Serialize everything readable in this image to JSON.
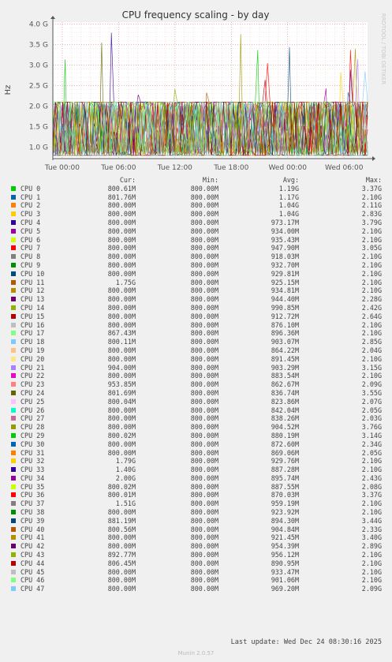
{
  "chart_data": {
    "type": "line",
    "title": "CPU frequency scaling - by day",
    "ylabel": "Hz",
    "side_label": "RRDTOOL / TOBI OETIKER",
    "ylim": [
      0.72,
      4.05
    ],
    "y_unit": "GHz",
    "y_ticks": [
      {
        "value": 1.0,
        "label": "1.0 G"
      },
      {
        "value": 1.5,
        "label": "1.5 G"
      },
      {
        "value": 2.0,
        "label": "2.0 G"
      },
      {
        "value": 2.5,
        "label": "2.5 G"
      },
      {
        "value": 3.0,
        "label": "3.0 G"
      },
      {
        "value": 3.5,
        "label": "3.5 G"
      },
      {
        "value": 4.0,
        "label": "4.0 G"
      }
    ],
    "x_unit": "hours since Tue 00:00",
    "xlim": [
      -1.0,
      32.5
    ],
    "x_ticks": [
      {
        "value": 0,
        "label": "Tue 00:00"
      },
      {
        "value": 6,
        "label": "Tue 06:00"
      },
      {
        "value": 12,
        "label": "Tue 12:00"
      },
      {
        "value": 18,
        "label": "Tue 18:00"
      },
      {
        "value": 24,
        "label": "Wed 00:00"
      },
      {
        "value": 30,
        "label": "Wed 06:00"
      }
    ],
    "grid": true,
    "legend_placement": "bottom",
    "columns": {
      "cur": "Cur:",
      "min": "Min:",
      "avg": "Avg:",
      "max": "Max:"
    },
    "series": [
      {
        "name": "CPU 0",
        "color": "#00cc00",
        "cur": "800.61M",
        "min": "800.00M",
        "avg": "1.19G",
        "max": "3.37G"
      },
      {
        "name": "CPU 1",
        "color": "#0066b3",
        "cur": "801.76M",
        "min": "800.00M",
        "avg": "1.17G",
        "max": "2.10G"
      },
      {
        "name": "CPU 2",
        "color": "#ff8000",
        "cur": "800.00M",
        "min": "800.00M",
        "avg": "1.04G",
        "max": "2.11G"
      },
      {
        "name": "CPU 3",
        "color": "#ffcc00",
        "cur": "800.00M",
        "min": "800.00M",
        "avg": "1.04G",
        "max": "2.83G"
      },
      {
        "name": "CPU 4",
        "color": "#330099",
        "cur": "800.00M",
        "min": "800.00M",
        "avg": "973.17M",
        "max": "3.79G"
      },
      {
        "name": "CPU 5",
        "color": "#990099",
        "cur": "800.00M",
        "min": "800.00M",
        "avg": "934.00M",
        "max": "2.10G"
      },
      {
        "name": "CPU 6",
        "color": "#ccff00",
        "cur": "800.00M",
        "min": "800.00M",
        "avg": "935.43M",
        "max": "2.10G"
      },
      {
        "name": "CPU 7",
        "color": "#ff0000",
        "cur": "800.00M",
        "min": "800.00M",
        "avg": "947.90M",
        "max": "3.05G"
      },
      {
        "name": "CPU 8",
        "color": "#808080",
        "cur": "800.00M",
        "min": "800.00M",
        "avg": "918.03M",
        "max": "2.10G"
      },
      {
        "name": "CPU 9",
        "color": "#008f00",
        "cur": "800.00M",
        "min": "800.00M",
        "avg": "932.70M",
        "max": "2.10G"
      },
      {
        "name": "CPU 10",
        "color": "#00487d",
        "cur": "800.00M",
        "min": "800.00M",
        "avg": "929.81M",
        "max": "2.10G"
      },
      {
        "name": "CPU 11",
        "color": "#b35a00",
        "cur": "1.75G",
        "min": "800.00M",
        "avg": "925.15M",
        "max": "2.10G"
      },
      {
        "name": "CPU 12",
        "color": "#b38f00",
        "cur": "800.00M",
        "min": "800.00M",
        "avg": "934.81M",
        "max": "2.10G"
      },
      {
        "name": "CPU 13",
        "color": "#6b006b",
        "cur": "800.00M",
        "min": "800.00M",
        "avg": "944.40M",
        "max": "2.28G"
      },
      {
        "name": "CPU 14",
        "color": "#8fb300",
        "cur": "800.00M",
        "min": "800.00M",
        "avg": "990.85M",
        "max": "2.42G"
      },
      {
        "name": "CPU 15",
        "color": "#b30000",
        "cur": "800.00M",
        "min": "800.00M",
        "avg": "912.72M",
        "max": "2.64G"
      },
      {
        "name": "CPU 16",
        "color": "#bebebe",
        "cur": "800.00M",
        "min": "800.00M",
        "avg": "876.10M",
        "max": "2.10G"
      },
      {
        "name": "CPU 17",
        "color": "#80ff80",
        "cur": "867.43M",
        "min": "800.00M",
        "avg": "896.36M",
        "max": "2.10G"
      },
      {
        "name": "CPU 18",
        "color": "#80c9ff",
        "cur": "800.11M",
        "min": "800.00M",
        "avg": "903.07M",
        "max": "2.85G"
      },
      {
        "name": "CPU 19",
        "color": "#ffc080",
        "cur": "800.00M",
        "min": "800.00M",
        "avg": "864.22M",
        "max": "2.04G"
      },
      {
        "name": "CPU 20",
        "color": "#ffe680",
        "cur": "800.00M",
        "min": "800.00M",
        "avg": "891.45M",
        "max": "2.10G"
      },
      {
        "name": "CPU 21",
        "color": "#aa80ff",
        "cur": "904.00M",
        "min": "800.00M",
        "avg": "903.29M",
        "max": "3.15G"
      },
      {
        "name": "CPU 22",
        "color": "#ee00cc",
        "cur": "800.00M",
        "min": "800.00M",
        "avg": "883.54M",
        "max": "2.10G"
      },
      {
        "name": "CPU 23",
        "color": "#ff8080",
        "cur": "953.85M",
        "min": "800.00M",
        "avg": "862.67M",
        "max": "2.09G"
      },
      {
        "name": "CPU 24",
        "color": "#666600",
        "cur": "801.69M",
        "min": "800.00M",
        "avg": "836.74M",
        "max": "3.55G"
      },
      {
        "name": "CPU 25",
        "color": "#ffbfff",
        "cur": "800.04M",
        "min": "800.00M",
        "avg": "823.86M",
        "max": "2.07G"
      },
      {
        "name": "CPU 26",
        "color": "#00ffcc",
        "cur": "800.00M",
        "min": "800.00M",
        "avg": "842.04M",
        "max": "2.05G"
      },
      {
        "name": "CPU 27",
        "color": "#cc6699",
        "cur": "800.00M",
        "min": "800.00M",
        "avg": "838.26M",
        "max": "2.03G"
      },
      {
        "name": "CPU 28",
        "color": "#999900",
        "cur": "800.00M",
        "min": "800.00M",
        "avg": "904.52M",
        "max": "3.76G"
      },
      {
        "name": "CPU 29",
        "color": "#00cc00",
        "cur": "800.02M",
        "min": "800.00M",
        "avg": "880.19M",
        "max": "3.14G"
      },
      {
        "name": "CPU 30",
        "color": "#0066b3",
        "cur": "800.00M",
        "min": "800.00M",
        "avg": "872.60M",
        "max": "2.34G"
      },
      {
        "name": "CPU 31",
        "color": "#ff8000",
        "cur": "800.00M",
        "min": "800.00M",
        "avg": "869.06M",
        "max": "2.05G"
      },
      {
        "name": "CPU 32",
        "color": "#ffcc00",
        "cur": "1.79G",
        "min": "800.00M",
        "avg": "929.76M",
        "max": "2.10G"
      },
      {
        "name": "CPU 33",
        "color": "#330099",
        "cur": "1.40G",
        "min": "800.00M",
        "avg": "887.28M",
        "max": "2.10G"
      },
      {
        "name": "CPU 34",
        "color": "#990099",
        "cur": "2.00G",
        "min": "800.00M",
        "avg": "895.74M",
        "max": "2.43G"
      },
      {
        "name": "CPU 35",
        "color": "#ccff00",
        "cur": "800.02M",
        "min": "800.00M",
        "avg": "887.55M",
        "max": "2.08G"
      },
      {
        "name": "CPU 36",
        "color": "#ff0000",
        "cur": "800.01M",
        "min": "800.00M",
        "avg": "870.03M",
        "max": "3.37G"
      },
      {
        "name": "CPU 37",
        "color": "#808080",
        "cur": "1.51G",
        "min": "800.00M",
        "avg": "959.19M",
        "max": "2.10G"
      },
      {
        "name": "CPU 38",
        "color": "#008f00",
        "cur": "800.00M",
        "min": "800.00M",
        "avg": "923.92M",
        "max": "2.10G"
      },
      {
        "name": "CPU 39",
        "color": "#00487d",
        "cur": "881.19M",
        "min": "800.00M",
        "avg": "894.30M",
        "max": "3.44G"
      },
      {
        "name": "CPU 40",
        "color": "#b35a00",
        "cur": "800.56M",
        "min": "800.00M",
        "avg": "904.84M",
        "max": "2.33G"
      },
      {
        "name": "CPU 41",
        "color": "#b38f00",
        "cur": "800.00M",
        "min": "800.00M",
        "avg": "921.45M",
        "max": "3.40G"
      },
      {
        "name": "CPU 42",
        "color": "#6b006b",
        "cur": "800.00M",
        "min": "800.00M",
        "avg": "954.39M",
        "max": "2.89G"
      },
      {
        "name": "CPU 43",
        "color": "#8fb300",
        "cur": "892.77M",
        "min": "800.00M",
        "avg": "956.12M",
        "max": "2.10G"
      },
      {
        "name": "CPU 44",
        "color": "#b30000",
        "cur": "806.45M",
        "min": "800.00M",
        "avg": "890.95M",
        "max": "2.10G"
      },
      {
        "name": "CPU 45",
        "color": "#bebebe",
        "cur": "800.00M",
        "min": "800.00M",
        "avg": "933.47M",
        "max": "2.10G"
      },
      {
        "name": "CPU 46",
        "color": "#80ff80",
        "cur": "800.00M",
        "min": "800.00M",
        "avg": "901.06M",
        "max": "2.10G"
      },
      {
        "name": "CPU 47",
        "color": "#80c9ff",
        "cur": "800.00M",
        "min": "800.00M",
        "avg": "969.20M",
        "max": "2.09G"
      }
    ]
  },
  "footer": {
    "last_update": "Last update: Wed Dec 24 08:30:16 2025",
    "munin": "Munin 2.0.57"
  }
}
